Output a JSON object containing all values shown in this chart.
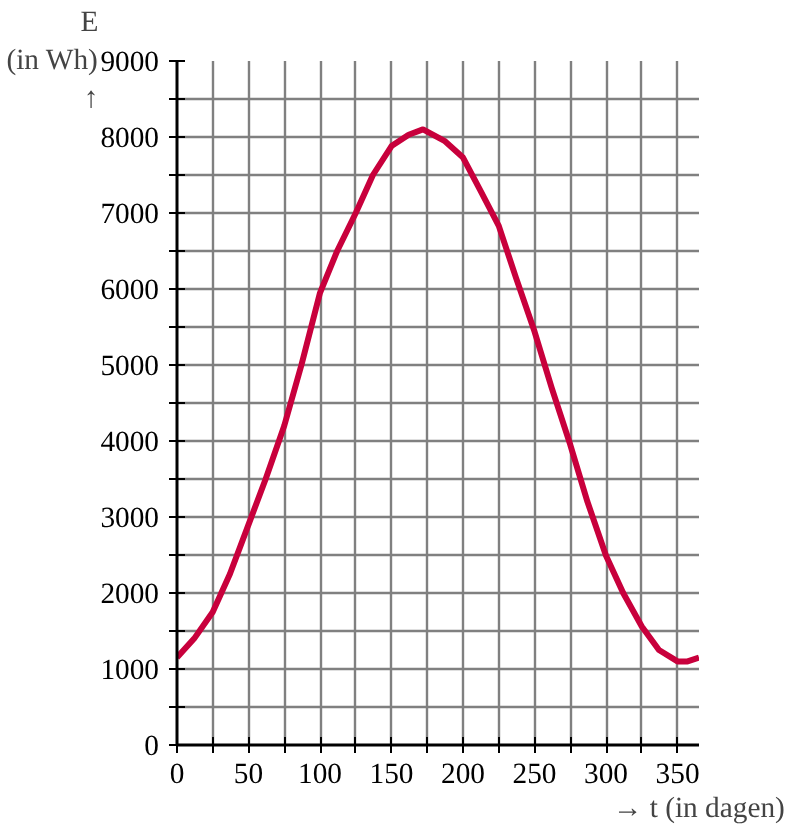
{
  "chart_data": {
    "type": "line",
    "xlabel": "→ t (in dagen)",
    "ylabel": "E\n(in Wh)\n↑",
    "x": [
      0,
      12,
      25,
      37,
      50,
      62,
      75,
      87,
      100,
      112,
      125,
      137,
      150,
      162,
      172,
      187,
      200,
      212,
      225,
      237,
      250,
      262,
      275,
      287,
      300,
      312,
      325,
      337,
      350,
      357,
      365
    ],
    "series": [
      {
        "color": "#c8003c",
        "values": [
          1150,
          1400,
          1750,
          2250,
          2900,
          3500,
          4200,
          5000,
          5950,
          6500,
          7000,
          7500,
          7880,
          8030,
          8100,
          7950,
          7730,
          7300,
          6830,
          6150,
          5440,
          4700,
          3950,
          3200,
          2490,
          2000,
          1560,
          1250,
          1100,
          1100,
          1150
        ]
      }
    ],
    "xlim": [
      0,
      365
    ],
    "ylim": [
      0,
      9000
    ],
    "xticks": [
      0,
      {
        "value": 25,
        "label": null
      },
      50,
      {
        "value": 75,
        "label": null
      },
      100,
      {
        "value": 125,
        "label": null
      },
      150,
      {
        "value": 175,
        "label": null
      },
      200,
      {
        "value": 225,
        "label": null
      },
      250,
      {
        "value": 275,
        "label": null
      },
      300,
      {
        "value": 325,
        "label": null
      },
      350
    ],
    "yticks": [
      0,
      {
        "value": 500,
        "label": null
      },
      1000,
      {
        "value": 1500,
        "label": null
      },
      2000,
      {
        "value": 2500,
        "label": null
      },
      3000,
      {
        "value": 3500,
        "label": null
      },
      4000,
      {
        "value": 4500,
        "label": null
      },
      5000,
      {
        "value": 5500,
        "label": null
      },
      6000,
      {
        "value": 6500,
        "label": null
      },
      7000,
      {
        "value": 7500,
        "label": null
      },
      8000,
      {
        "value": 8500,
        "label": null
      },
      9000
    ],
    "grid": true,
    "marker": "none",
    "line_style": "solid"
  }
}
